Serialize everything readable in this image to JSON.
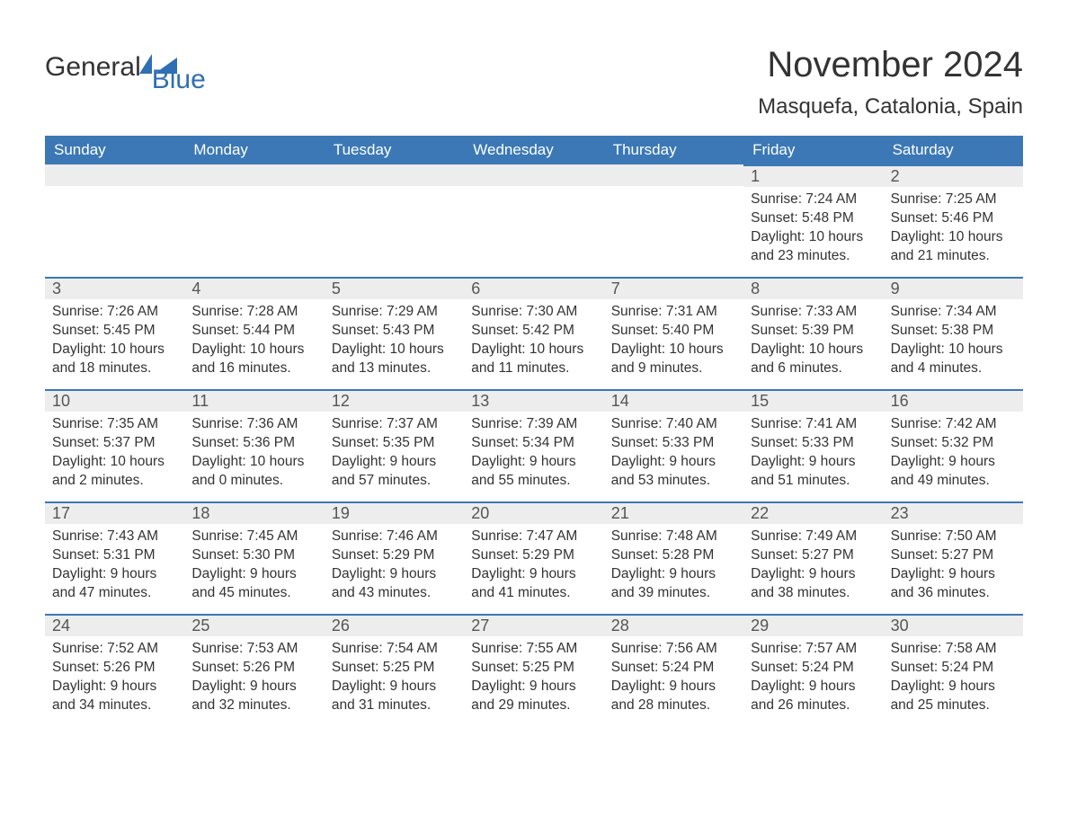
{
  "logo": {
    "text_general": "General",
    "text_blue": "Blue",
    "accent_color": "#2f6fb3"
  },
  "title": "November 2024",
  "location": "Masquefa, Catalonia, Spain",
  "colors": {
    "header_bg": "#3b78b5",
    "header_text": "#ffffff",
    "daynum_bg": "#ededed",
    "border": "#3b78b5",
    "text": "#333333"
  },
  "typography": {
    "title_fontsize": 40,
    "location_fontsize": 24,
    "dow_fontsize": 17,
    "daynum_fontsize": 18,
    "body_fontsize": 15.5
  },
  "days_of_week": [
    "Sunday",
    "Monday",
    "Tuesday",
    "Wednesday",
    "Thursday",
    "Friday",
    "Saturday"
  ],
  "weeks": [
    [
      {
        "empty": true
      },
      {
        "empty": true
      },
      {
        "empty": true
      },
      {
        "empty": true
      },
      {
        "empty": true
      },
      {
        "n": "1",
        "sunrise": "Sunrise: 7:24 AM",
        "sunset": "Sunset: 5:48 PM",
        "daylight": "Daylight: 10 hours and 23 minutes."
      },
      {
        "n": "2",
        "sunrise": "Sunrise: 7:25 AM",
        "sunset": "Sunset: 5:46 PM",
        "daylight": "Daylight: 10 hours and 21 minutes."
      }
    ],
    [
      {
        "n": "3",
        "sunrise": "Sunrise: 7:26 AM",
        "sunset": "Sunset: 5:45 PM",
        "daylight": "Daylight: 10 hours and 18 minutes."
      },
      {
        "n": "4",
        "sunrise": "Sunrise: 7:28 AM",
        "sunset": "Sunset: 5:44 PM",
        "daylight": "Daylight: 10 hours and 16 minutes."
      },
      {
        "n": "5",
        "sunrise": "Sunrise: 7:29 AM",
        "sunset": "Sunset: 5:43 PM",
        "daylight": "Daylight: 10 hours and 13 minutes."
      },
      {
        "n": "6",
        "sunrise": "Sunrise: 7:30 AM",
        "sunset": "Sunset: 5:42 PM",
        "daylight": "Daylight: 10 hours and 11 minutes."
      },
      {
        "n": "7",
        "sunrise": "Sunrise: 7:31 AM",
        "sunset": "Sunset: 5:40 PM",
        "daylight": "Daylight: 10 hours and 9 minutes."
      },
      {
        "n": "8",
        "sunrise": "Sunrise: 7:33 AM",
        "sunset": "Sunset: 5:39 PM",
        "daylight": "Daylight: 10 hours and 6 minutes."
      },
      {
        "n": "9",
        "sunrise": "Sunrise: 7:34 AM",
        "sunset": "Sunset: 5:38 PM",
        "daylight": "Daylight: 10 hours and 4 minutes."
      }
    ],
    [
      {
        "n": "10",
        "sunrise": "Sunrise: 7:35 AM",
        "sunset": "Sunset: 5:37 PM",
        "daylight": "Daylight: 10 hours and 2 minutes."
      },
      {
        "n": "11",
        "sunrise": "Sunrise: 7:36 AM",
        "sunset": "Sunset: 5:36 PM",
        "daylight": "Daylight: 10 hours and 0 minutes."
      },
      {
        "n": "12",
        "sunrise": "Sunrise: 7:37 AM",
        "sunset": "Sunset: 5:35 PM",
        "daylight": "Daylight: 9 hours and 57 minutes."
      },
      {
        "n": "13",
        "sunrise": "Sunrise: 7:39 AM",
        "sunset": "Sunset: 5:34 PM",
        "daylight": "Daylight: 9 hours and 55 minutes."
      },
      {
        "n": "14",
        "sunrise": "Sunrise: 7:40 AM",
        "sunset": "Sunset: 5:33 PM",
        "daylight": "Daylight: 9 hours and 53 minutes."
      },
      {
        "n": "15",
        "sunrise": "Sunrise: 7:41 AM",
        "sunset": "Sunset: 5:33 PM",
        "daylight": "Daylight: 9 hours and 51 minutes."
      },
      {
        "n": "16",
        "sunrise": "Sunrise: 7:42 AM",
        "sunset": "Sunset: 5:32 PM",
        "daylight": "Daylight: 9 hours and 49 minutes."
      }
    ],
    [
      {
        "n": "17",
        "sunrise": "Sunrise: 7:43 AM",
        "sunset": "Sunset: 5:31 PM",
        "daylight": "Daylight: 9 hours and 47 minutes."
      },
      {
        "n": "18",
        "sunrise": "Sunrise: 7:45 AM",
        "sunset": "Sunset: 5:30 PM",
        "daylight": "Daylight: 9 hours and 45 minutes."
      },
      {
        "n": "19",
        "sunrise": "Sunrise: 7:46 AM",
        "sunset": "Sunset: 5:29 PM",
        "daylight": "Daylight: 9 hours and 43 minutes."
      },
      {
        "n": "20",
        "sunrise": "Sunrise: 7:47 AM",
        "sunset": "Sunset: 5:29 PM",
        "daylight": "Daylight: 9 hours and 41 minutes."
      },
      {
        "n": "21",
        "sunrise": "Sunrise: 7:48 AM",
        "sunset": "Sunset: 5:28 PM",
        "daylight": "Daylight: 9 hours and 39 minutes."
      },
      {
        "n": "22",
        "sunrise": "Sunrise: 7:49 AM",
        "sunset": "Sunset: 5:27 PM",
        "daylight": "Daylight: 9 hours and 38 minutes."
      },
      {
        "n": "23",
        "sunrise": "Sunrise: 7:50 AM",
        "sunset": "Sunset: 5:27 PM",
        "daylight": "Daylight: 9 hours and 36 minutes."
      }
    ],
    [
      {
        "n": "24",
        "sunrise": "Sunrise: 7:52 AM",
        "sunset": "Sunset: 5:26 PM",
        "daylight": "Daylight: 9 hours and 34 minutes."
      },
      {
        "n": "25",
        "sunrise": "Sunrise: 7:53 AM",
        "sunset": "Sunset: 5:26 PM",
        "daylight": "Daylight: 9 hours and 32 minutes."
      },
      {
        "n": "26",
        "sunrise": "Sunrise: 7:54 AM",
        "sunset": "Sunset: 5:25 PM",
        "daylight": "Daylight: 9 hours and 31 minutes."
      },
      {
        "n": "27",
        "sunrise": "Sunrise: 7:55 AM",
        "sunset": "Sunset: 5:25 PM",
        "daylight": "Daylight: 9 hours and 29 minutes."
      },
      {
        "n": "28",
        "sunrise": "Sunrise: 7:56 AM",
        "sunset": "Sunset: 5:24 PM",
        "daylight": "Daylight: 9 hours and 28 minutes."
      },
      {
        "n": "29",
        "sunrise": "Sunrise: 7:57 AM",
        "sunset": "Sunset: 5:24 PM",
        "daylight": "Daylight: 9 hours and 26 minutes."
      },
      {
        "n": "30",
        "sunrise": "Sunrise: 7:58 AM",
        "sunset": "Sunset: 5:24 PM",
        "daylight": "Daylight: 9 hours and 25 minutes."
      }
    ]
  ]
}
